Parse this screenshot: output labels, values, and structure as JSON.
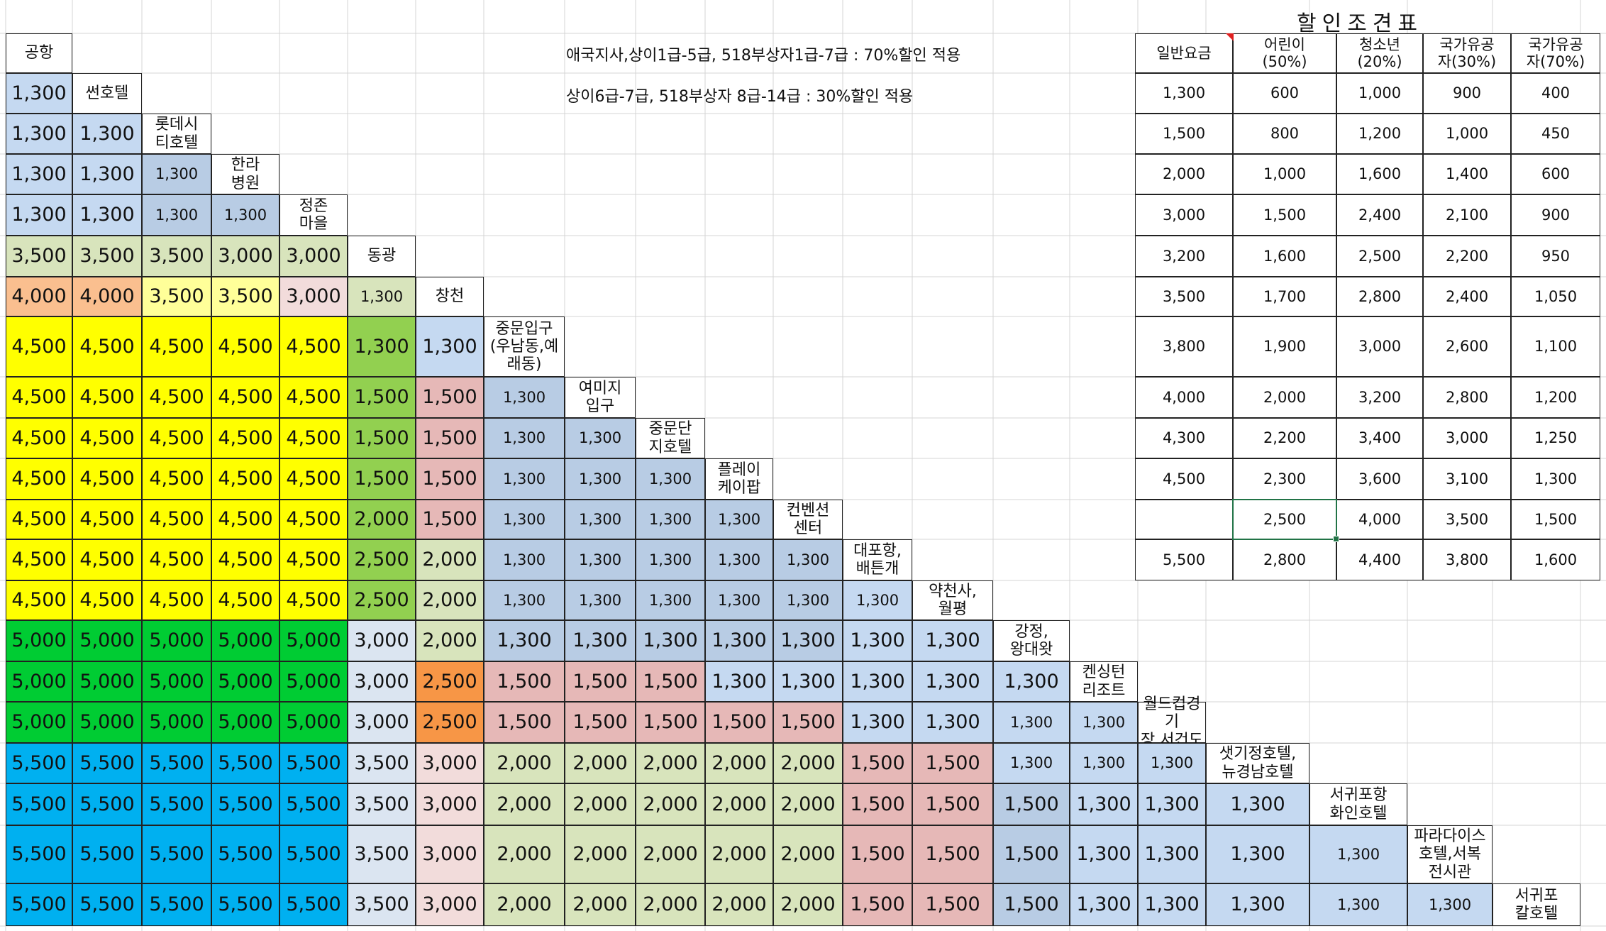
{
  "sheet": {
    "stops": [
      "공항",
      "썬호텔",
      "롯데시\n티호텔",
      "한라\n병원",
      "정존\n마을",
      "동광",
      "창천",
      "중문입구\n(우남동,예\n래동)",
      "여미지\n입구",
      "중문단\n지호텔",
      "플레이\n케이팝",
      "컨벤션\n센터",
      "대포항,\n배튼개",
      "약천사,\n월평",
      "강정,\n왕대왓",
      "켄싱턴\n리조트",
      "월드컵경기\n장,서건도",
      "샛기정호텔,\n뉴경남호텔",
      "서귀포항\n화인호텔",
      "파라다이스\n호텔,서복\n전시관",
      "서귀포\n칼호텔"
    ],
    "fare_rows": [
      [
        "1,300"
      ],
      [
        "1,300",
        "1,300"
      ],
      [
        "1,300",
        "1,300",
        "1,300"
      ],
      [
        "1,300",
        "1,300",
        "1,300",
        "1,300"
      ],
      [
        "3,500",
        "3,500",
        "3,500",
        "3,000",
        "3,000"
      ],
      [
        "4,000",
        "4,000",
        "3,500",
        "3,500",
        "3,000",
        "1,300"
      ],
      [
        "4,500",
        "4,500",
        "4,500",
        "4,500",
        "4,500",
        "1,300",
        "1,300"
      ],
      [
        "4,500",
        "4,500",
        "4,500",
        "4,500",
        "4,500",
        "1,500",
        "1,500",
        "1,300"
      ],
      [
        "4,500",
        "4,500",
        "4,500",
        "4,500",
        "4,500",
        "1,500",
        "1,500",
        "1,300",
        "1,300"
      ],
      [
        "4,500",
        "4,500",
        "4,500",
        "4,500",
        "4,500",
        "1,500",
        "1,500",
        "1,300",
        "1,300",
        "1,300"
      ],
      [
        "4,500",
        "4,500",
        "4,500",
        "4,500",
        "4,500",
        "2,000",
        "1,500",
        "1,300",
        "1,300",
        "1,300",
        "1,300"
      ],
      [
        "4,500",
        "4,500",
        "4,500",
        "4,500",
        "4,500",
        "2,500",
        "2,000",
        "1,300",
        "1,300",
        "1,300",
        "1,300",
        "1,300"
      ],
      [
        "4,500",
        "4,500",
        "4,500",
        "4,500",
        "4,500",
        "2,500",
        "2,000",
        "1,300",
        "1,300",
        "1,300",
        "1,300",
        "1,300",
        "1,300"
      ],
      [
        "5,000",
        "5,000",
        "5,000",
        "5,000",
        "5,000",
        "3,000",
        "2,000",
        "1,300",
        "1,300",
        "1,300",
        "1,300",
        "1,300",
        "1,300",
        "1,300"
      ],
      [
        "5,000",
        "5,000",
        "5,000",
        "5,000",
        "5,000",
        "3,000",
        "2,500",
        "1,500",
        "1,500",
        "1,500",
        "1,300",
        "1,300",
        "1,300",
        "1,300",
        "1,300"
      ],
      [
        "5,000",
        "5,000",
        "5,000",
        "5,000",
        "5,000",
        "3,000",
        "2,500",
        "1,500",
        "1,500",
        "1,500",
        "1,500",
        "1,500",
        "1,300",
        "1,300",
        "1,300",
        "1,300"
      ],
      [
        "5,500",
        "5,500",
        "5,500",
        "5,500",
        "5,500",
        "3,500",
        "3,000",
        "2,000",
        "2,000",
        "2,000",
        "2,000",
        "2,000",
        "1,500",
        "1,500",
        "1,300",
        "1,300",
        "1,300"
      ],
      [
        "5,500",
        "5,500",
        "5,500",
        "5,500",
        "5,500",
        "3,500",
        "3,000",
        "2,000",
        "2,000",
        "2,000",
        "2,000",
        "2,000",
        "1,500",
        "1,500",
        "1,500",
        "1,300",
        "1,300",
        "1,300"
      ],
      [
        "5,500",
        "5,500",
        "5,500",
        "5,500",
        "5,500",
        "3,500",
        "3,000",
        "2,000",
        "2,000",
        "2,000",
        "2,000",
        "2,000",
        "1,500",
        "1,500",
        "1,500",
        "1,300",
        "1,300",
        "1,300",
        "1,300"
      ],
      [
        "5,500",
        "5,500",
        "5,500",
        "5,500",
        "5,500",
        "3,500",
        "3,000",
        "2,000",
        "2,000",
        "2,000",
        "2,000",
        "2,000",
        "1,500",
        "1,500",
        "1,500",
        "1,300",
        "1,300",
        "1,300",
        "1,300",
        "1,300"
      ]
    ],
    "palette": {
      "blue": "#c5d9f1",
      "steel": "#b8cce4",
      "sage": "#d8e4bc",
      "salmon": "#fabf8f",
      "cream": "#ffff99",
      "pink": "#f2dcdb",
      "yellow": "#ffff00",
      "grass": "#92d050",
      "rose": "#e6b8b7",
      "green": "#00cc33",
      "ice": "#dbe5f1",
      "orange": "#f79646",
      "cyan": "#00b0f0",
      "grid": "#d4d4d4",
      "selection": "#217346"
    }
  },
  "notes": {
    "line1": "애국지사,상이1급-5급, 518부상자1급-7급 : 70%할인 적용",
    "line2": "상이6급-7급, 518부상자 8급-14급 : 30%할인 적용"
  },
  "discount": {
    "title": "할인조견표",
    "headers": [
      "일반요금",
      "어린이\n(50%)",
      "청소년\n(20%)",
      "국가유공\n자(30%)",
      "국가유공\n자(70%)"
    ],
    "rows": [
      [
        "1,300",
        "600",
        "1,000",
        "900",
        "400"
      ],
      [
        "1,500",
        "800",
        "1,200",
        "1,000",
        "450"
      ],
      [
        "2,000",
        "1,000",
        "1,600",
        "1,400",
        "600"
      ],
      [
        "3,000",
        "1,500",
        "2,400",
        "2,100",
        "900"
      ],
      [
        "3,200",
        "1,600",
        "2,500",
        "2,200",
        "950"
      ],
      [
        "3,500",
        "1,700",
        "2,800",
        "2,400",
        "1,050"
      ],
      [
        "3,800",
        "1,900",
        "3,000",
        "2,600",
        "1,100"
      ],
      [
        "4,000",
        "2,000",
        "3,200",
        "2,800",
        "1,200"
      ],
      [
        "4,300",
        "2,200",
        "3,400",
        "3,000",
        "1,250"
      ],
      [
        "4,500",
        "2,300",
        "3,600",
        "3,100",
        "1,300"
      ],
      [
        "",
        "2,500",
        "4,000",
        "3,500",
        "1,500"
      ],
      [
        "5,500",
        "2,800",
        "4,400",
        "3,800",
        "1,600"
      ]
    ]
  }
}
